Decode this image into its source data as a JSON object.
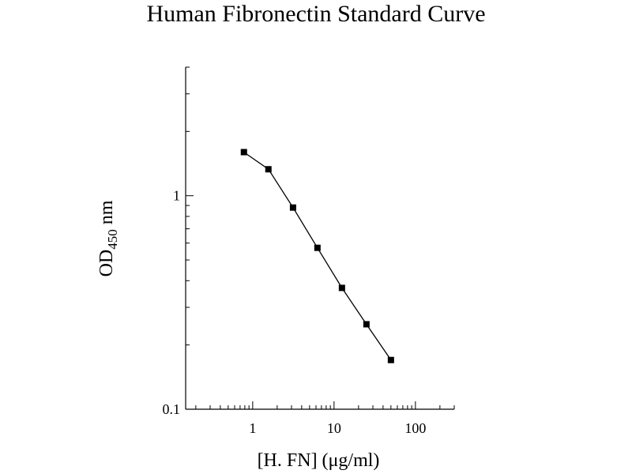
{
  "chart_data": {
    "type": "line",
    "title": "Human Fibronectin Standard Curve",
    "xlabel": "[H. FN] (μg/ml)",
    "ylabel": {
      "main": "OD",
      "subscript": "450",
      "unit": " nm"
    },
    "xscale": "log",
    "yscale": "log",
    "xlim": [
      0.15,
      300
    ],
    "ylim": [
      0.1,
      4
    ],
    "x_ticks": [
      {
        "value": 1,
        "label": "1"
      },
      {
        "value": 10,
        "label": "10"
      },
      {
        "value": 100,
        "label": "100"
      }
    ],
    "y_ticks": [
      {
        "value": 0.1,
        "label": "0.1"
      },
      {
        "value": 1,
        "label": "1"
      }
    ],
    "grid": false,
    "marker": "square",
    "color": "#000000",
    "series": [
      {
        "x": [
          0.78,
          1.56,
          3.13,
          6.25,
          12.5,
          25,
          50
        ],
        "y": [
          1.6,
          1.33,
          0.88,
          0.57,
          0.37,
          0.25,
          0.17
        ]
      }
    ]
  }
}
